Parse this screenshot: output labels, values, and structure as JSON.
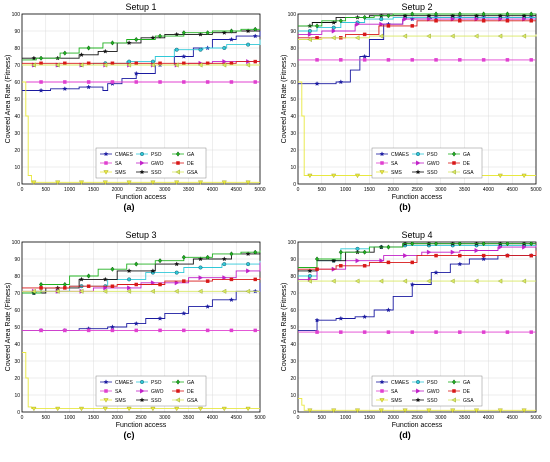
{
  "figure": {
    "y_axis_label": "Covered Area Rate (Fitness)",
    "x_axis_label": "Function access"
  },
  "colors": {
    "CMAES": "#1a1aa0",
    "SA": "#e040d0",
    "SMS": "#e8e840",
    "PSO": "#30c8d8",
    "GWO": "#c020c8",
    "SSO": "#111111",
    "GA": "#20b020",
    "DE": "#d81818",
    "GSA": "#d8e860"
  },
  "legend": [
    {
      "name": "CMAES",
      "marker": "star"
    },
    {
      "name": "PSO",
      "marker": "circle"
    },
    {
      "name": "GA",
      "marker": "diamond"
    },
    {
      "name": "SA",
      "marker": "square"
    },
    {
      "name": "GWO",
      "marker": "triangle-right"
    },
    {
      "name": "DE",
      "marker": "square"
    },
    {
      "name": "SMS",
      "marker": "triangle-down"
    },
    {
      "name": "SSO",
      "marker": "star-black"
    },
    {
      "name": "GSA",
      "marker": "triangle-left"
    }
  ],
  "chart_data": [
    {
      "type": "line",
      "title": "Setup 1",
      "panel_label": "(a)",
      "xlabel": "Function access",
      "ylabel": "Covered Area Rate (Fitness)",
      "xlim": [
        0,
        5000
      ],
      "ylim": [
        0,
        100
      ],
      "xticks": [
        0,
        500,
        1000,
        1500,
        2000,
        2500,
        3000,
        3500,
        4000,
        4500,
        5000
      ],
      "yticks": [
        0,
        10,
        20,
        30,
        40,
        50,
        60,
        70,
        80,
        90,
        100
      ],
      "legend_position": "lower-center",
      "series": [
        {
          "name": "CMAES",
          "x": [
            0,
            150,
            600,
            1200,
            1700,
            1800,
            2100,
            2400,
            2800,
            3200,
            3600,
            4000,
            4500,
            5000
          ],
          "y": [
            55,
            55,
            56,
            57,
            55,
            59,
            62,
            65,
            70,
            75,
            80,
            85,
            87,
            90
          ]
        },
        {
          "name": "SA",
          "x": [
            0,
            200,
            5000
          ],
          "y": [
            60,
            60,
            60
          ]
        },
        {
          "name": "SMS",
          "x": [
            0,
            80,
            130,
            200,
            5000
          ],
          "y": [
            60,
            40,
            5,
            1,
            1
          ]
        },
        {
          "name": "PSO",
          "x": [
            0,
            500,
            1500,
            2200,
            2800,
            3200,
            3800,
            4300,
            5000
          ],
          "y": [
            70,
            70,
            71,
            72,
            75,
            79,
            80,
            82,
            85
          ]
        },
        {
          "name": "GWO",
          "x": [
            0,
            3000,
            3500,
            4000,
            5000
          ],
          "y": [
            70,
            70,
            71,
            72,
            72
          ]
        },
        {
          "name": "SSO",
          "x": [
            0,
            600,
            1200,
            1600,
            2000,
            2500,
            3000,
            3500,
            4000,
            4500,
            5000
          ],
          "y": [
            74,
            74,
            76,
            78,
            83,
            86,
            88,
            88,
            89,
            90,
            90
          ]
        },
        {
          "name": "GA",
          "x": [
            0,
            300,
            800,
            1200,
            1700,
            2200,
            2800,
            3400,
            4000,
            4600,
            5000
          ],
          "y": [
            73,
            74,
            77,
            80,
            83,
            85,
            87,
            89,
            90,
            91,
            91
          ]
        },
        {
          "name": "DE",
          "x": [
            0,
            2500,
            3500,
            4500,
            5000
          ],
          "y": [
            71,
            71,
            71,
            72,
            72
          ]
        },
        {
          "name": "GSA",
          "x": [
            0,
            5000
          ],
          "y": [
            70,
            70
          ]
        }
      ]
    },
    {
      "type": "line",
      "title": "Setup 2",
      "panel_label": "(b)",
      "xlabel": "Function access",
      "ylabel": "Covered Area Rate (Fitness)",
      "xlim": [
        0,
        5000
      ],
      "ylim": [
        0,
        100
      ],
      "xticks": [
        0,
        500,
        1000,
        1500,
        2000,
        2500,
        3000,
        3500,
        4000,
        4500,
        5000
      ],
      "yticks": [
        0,
        10,
        20,
        30,
        40,
        50,
        60,
        70,
        80,
        90,
        100
      ],
      "legend_position": "lower-center",
      "series": [
        {
          "name": "CMAES",
          "x": [
            0,
            300,
            800,
            1100,
            1300,
            1500,
            1800,
            2200,
            2800,
            5000
          ],
          "y": [
            59,
            59,
            60,
            67,
            75,
            85,
            94,
            97,
            98,
            98
          ]
        },
        {
          "name": "SA",
          "x": [
            0,
            5000
          ],
          "y": [
            73,
            73
          ]
        },
        {
          "name": "SMS",
          "x": [
            0,
            80,
            130,
            200,
            5000
          ],
          "y": [
            60,
            40,
            5,
            5,
            5
          ]
        },
        {
          "name": "PSO",
          "x": [
            0,
            400,
            900,
            1400,
            2000,
            5000
          ],
          "y": [
            90,
            92,
            95,
            97,
            98,
            98
          ]
        },
        {
          "name": "GWO",
          "x": [
            0,
            500,
            1200,
            2200,
            5000
          ],
          "y": [
            88,
            90,
            94,
            97,
            97
          ]
        },
        {
          "name": "SSO",
          "x": [
            0,
            300,
            800,
            1500,
            2200,
            5000
          ],
          "y": [
            93,
            95,
            98,
            99,
            99,
            99
          ]
        },
        {
          "name": "GA",
          "x": [
            0,
            500,
            1000,
            1600,
            2000,
            5000
          ],
          "y": [
            93,
            96,
            98,
            99,
            100,
            100
          ]
        },
        {
          "name": "DE",
          "x": [
            0,
            1000,
            1700,
            2500,
            5000
          ],
          "y": [
            86,
            88,
            93,
            96,
            96
          ]
        },
        {
          "name": "GSA",
          "x": [
            0,
            500,
            1500,
            5000
          ],
          "y": [
            85,
            86,
            87,
            88
          ]
        }
      ]
    },
    {
      "type": "line",
      "title": "Setup 3",
      "panel_label": "(c)",
      "xlabel": "Function access",
      "ylabel": "Covered Area Rate (Fitness)",
      "xlim": [
        0,
        5000
      ],
      "ylim": [
        0,
        100
      ],
      "xticks": [
        0,
        500,
        1000,
        1500,
        2000,
        2500,
        3000,
        3500,
        4000,
        4500,
        5000
      ],
      "yticks": [
        0,
        10,
        20,
        30,
        40,
        50,
        60,
        70,
        80,
        90,
        100
      ],
      "legend_position": "lower-center",
      "series": [
        {
          "name": "CMAES",
          "x": [
            0,
            400,
            1200,
            1800,
            2200,
            2600,
            3000,
            3500,
            4000,
            4500,
            5000
          ],
          "y": [
            48,
            48,
            49,
            50,
            52,
            55,
            58,
            62,
            66,
            71,
            76
          ]
        },
        {
          "name": "SA",
          "x": [
            0,
            5000
          ],
          "y": [
            48,
            48
          ]
        },
        {
          "name": "SMS",
          "x": [
            0,
            80,
            130,
            200,
            5000
          ],
          "y": [
            35,
            20,
            3,
            2,
            2
          ]
        },
        {
          "name": "PSO",
          "x": [
            0,
            300,
            1000,
            1800,
            2600,
            3400,
            4200,
            5000
          ],
          "y": [
            70,
            71,
            74,
            78,
            82,
            85,
            87,
            89
          ]
        },
        {
          "name": "GWO",
          "x": [
            0,
            500,
            1500,
            2500,
            3500,
            4500,
            5000
          ],
          "y": [
            71,
            71,
            73,
            76,
            79,
            83,
            88
          ]
        },
        {
          "name": "SSO",
          "x": [
            0,
            500,
            1200,
            2000,
            2800,
            3600,
            4400,
            5000
          ],
          "y": [
            70,
            73,
            78,
            83,
            87,
            90,
            93,
            95
          ]
        },
        {
          "name": "GA",
          "x": [
            0,
            400,
            1000,
            1600,
            2200,
            2800,
            3400,
            4000,
            4600,
            5000
          ],
          "y": [
            70,
            75,
            80,
            84,
            87,
            89,
            91,
            93,
            94,
            95
          ]
        },
        {
          "name": "DE",
          "x": [
            0,
            1000,
            2000,
            3000,
            4000,
            5000
          ],
          "y": [
            73,
            74,
            75,
            77,
            78,
            79
          ]
        },
        {
          "name": "GSA",
          "x": [
            0,
            5000
          ],
          "y": [
            71,
            71
          ]
        }
      ]
    },
    {
      "type": "line",
      "title": "Setup 4",
      "panel_label": "(d)",
      "xlabel": "Function access",
      "ylabel": "Covered Area Rate (Fitness)",
      "xlim": [
        0,
        5000
      ],
      "ylim": [
        0,
        100
      ],
      "xticks": [
        0,
        500,
        1000,
        1500,
        2000,
        2500,
        3000,
        3500,
        4000,
        4500,
        5000
      ],
      "yticks": [
        0,
        10,
        20,
        30,
        40,
        50,
        60,
        70,
        80,
        90,
        100
      ],
      "legend_position": "lower-center",
      "series": [
        {
          "name": "CMAES",
          "x": [
            0,
            250,
            400,
            800,
            1200,
            1600,
            2000,
            2400,
            2800,
            3200,
            3600,
            4200,
            5000
          ],
          "y": [
            48,
            48,
            54,
            55,
            56,
            60,
            68,
            75,
            82,
            87,
            90,
            92,
            92
          ]
        },
        {
          "name": "SA",
          "x": [
            0,
            5000
          ],
          "y": [
            47,
            47
          ]
        },
        {
          "name": "SMS",
          "x": [
            0,
            80,
            130,
            200,
            5000
          ],
          "y": [
            8,
            4,
            1,
            1,
            1
          ]
        },
        {
          "name": "PSO",
          "x": [
            0,
            400,
            900,
            1500,
            2200,
            5000
          ],
          "y": [
            80,
            89,
            96,
            97,
            98,
            98
          ]
        },
        {
          "name": "GWO",
          "x": [
            0,
            400,
            1000,
            1800,
            2600,
            3400,
            4200,
            5000
          ],
          "y": [
            78,
            84,
            89,
            92,
            94,
            95,
            97,
            98
          ]
        },
        {
          "name": "SSO",
          "x": [
            0,
            400,
            1000,
            1600,
            2200,
            5000
          ],
          "y": [
            83,
            89,
            94,
            97,
            99,
            99
          ]
        },
        {
          "name": "GA",
          "x": [
            0,
            400,
            900,
            1500,
            2200,
            5000
          ],
          "y": [
            85,
            90,
            94,
            97,
            99,
            99
          ]
        },
        {
          "name": "DE",
          "x": [
            0,
            800,
            1500,
            2500,
            5000
          ],
          "y": [
            84,
            86,
            88,
            92,
            95
          ]
        },
        {
          "name": "GSA",
          "x": [
            0,
            5000
          ],
          "y": [
            77,
            77
          ]
        }
      ]
    }
  ]
}
